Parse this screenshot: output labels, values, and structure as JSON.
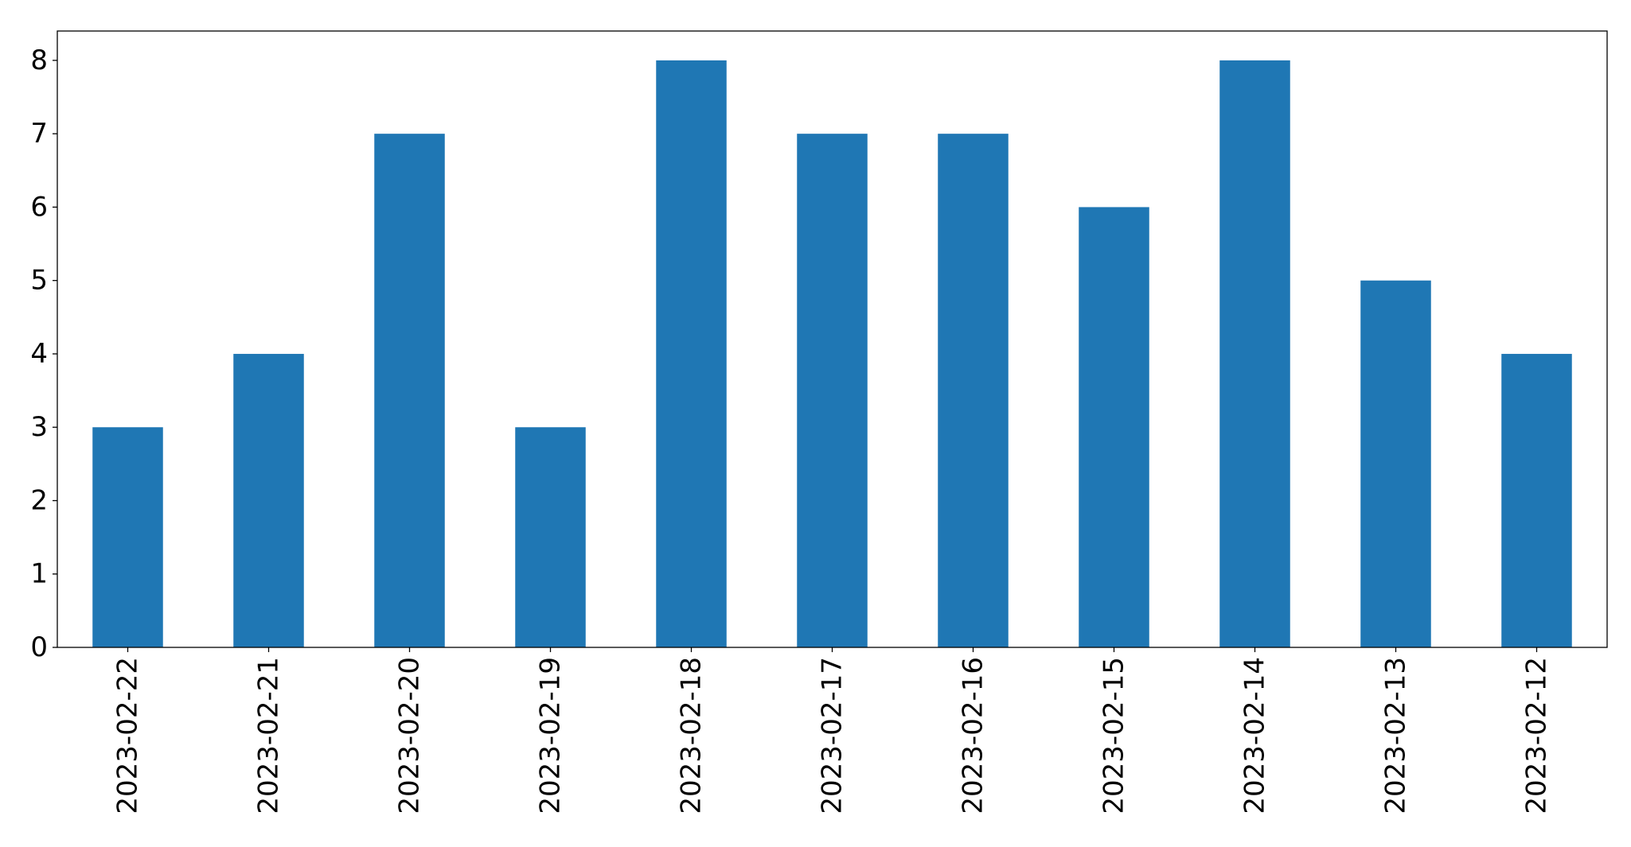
{
  "chart_data": {
    "type": "bar",
    "categories": [
      "2023-02-22",
      "2023-02-21",
      "2023-02-20",
      "2023-02-19",
      "2023-02-18",
      "2023-02-17",
      "2023-02-16",
      "2023-02-15",
      "2023-02-14",
      "2023-02-13",
      "2023-02-12"
    ],
    "values": [
      3,
      4,
      7,
      3,
      8,
      7,
      7,
      6,
      8,
      5,
      4
    ],
    "color": "#1f77b4",
    "ylim": [
      0,
      8.4
    ],
    "yticks": [
      0,
      1,
      2,
      3,
      4,
      5,
      6,
      7,
      8
    ],
    "grid": false
  }
}
